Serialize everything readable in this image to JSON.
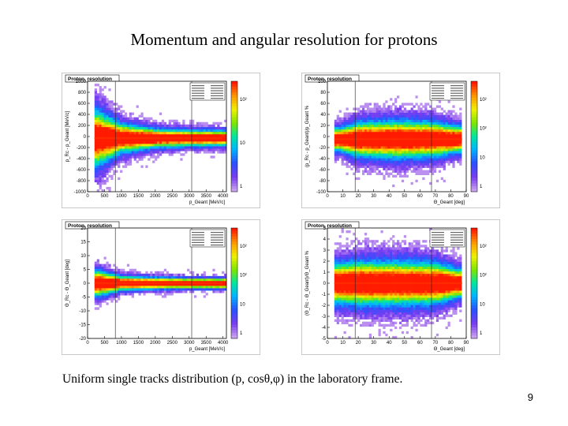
{
  "slide": {
    "title": "Momentum and angular resolution for protons",
    "caption": "Uniform single tracks distribution  (p, cosθ,φ) in the laboratory frame.",
    "page_number": "9"
  },
  "chart_data": [
    {
      "type": "heatmap",
      "title": "Proton, resolution",
      "xlabel": "p_Geant [MeV/c]",
      "ylabel": "p_Rc - p_Geant [MeV/c]",
      "xlim": [
        0,
        4100
      ],
      "ylim": [
        -1000,
        1000
      ],
      "xticks": [
        "0",
        "500",
        "1000",
        "1500",
        "2000",
        "2500",
        "3000",
        "3500",
        "4000"
      ],
      "yticks": [
        "1000",
        "800",
        "600",
        "400",
        "200",
        "0",
        "-200",
        "-400",
        "-600",
        "-800",
        "-1000"
      ],
      "colorbar_labels": [
        "10²",
        "10",
        "1"
      ],
      "core_y": -30,
      "spread": {
        "x": [
          300,
          1000,
          2000,
          3000,
          4000
        ],
        "halfwidth": [
          950,
          500,
          330,
          280,
          260
        ]
      }
    },
    {
      "type": "heatmap",
      "title": "Proton, resolution",
      "xlabel": "Θ_Geant [deg]",
      "ylabel": "(p_Rc - p_Geant)/p_Geant %",
      "xlim": [
        0,
        90
      ],
      "ylim": [
        -100,
        100
      ],
      "xticks": [
        "0",
        "10",
        "20",
        "30",
        "40",
        "50",
        "60",
        "70",
        "80",
        "90"
      ],
      "yticks": [
        "100",
        "80",
        "60",
        "40",
        "20",
        "0",
        "-20",
        "-40",
        "-60",
        "-80",
        "-100"
      ],
      "colorbar_labels": [
        "10²",
        "10²",
        "10",
        "1"
      ],
      "core_y": -5,
      "spread": {
        "x": [
          8,
          20,
          45,
          70,
          85
        ],
        "halfwidth": [
          40,
          60,
          65,
          60,
          45
        ]
      }
    },
    {
      "type": "heatmap",
      "title": "Proton, resolution",
      "xlabel": "p_Geant [MeV/c]",
      "ylabel": "Θ_Rc - Θ_Geant [deg]",
      "xlim": [
        0,
        4100
      ],
      "ylim": [
        -20,
        20
      ],
      "xticks": [
        "0",
        "500",
        "1000",
        "1500",
        "2000",
        "2500",
        "3000",
        "3500",
        "4000"
      ],
      "yticks": [
        "20",
        "15",
        "10",
        "5",
        "0",
        "-5",
        "-10",
        "-15",
        "-20"
      ],
      "colorbar_labels": [
        "10²",
        "10²",
        "10",
        "1"
      ],
      "core_y": 0,
      "spread": {
        "x": [
          300,
          1000,
          2000,
          3000,
          4000
        ],
        "halfwidth": [
          9,
          5,
          4,
          3.5,
          3.5
        ]
      }
    },
    {
      "type": "heatmap",
      "title": "Proton, resolution",
      "xlabel": "Θ_Geant [deg]",
      "ylabel": "(Θ_Rc - Θ_Geant)/Θ_Geant %",
      "xlim": [
        0,
        90
      ],
      "ylim": [
        -5,
        5
      ],
      "xticks": [
        "0",
        "10",
        "20",
        "30",
        "40",
        "50",
        "60",
        "70",
        "80",
        "90"
      ],
      "yticks": [
        "5",
        "4",
        "3",
        "2",
        "1",
        "0",
        "-1",
        "-2",
        "-3",
        "-4",
        "-5"
      ],
      "colorbar_labels": [
        "10²",
        "10²",
        "10",
        "1"
      ],
      "core_y": 0,
      "spread": {
        "x": [
          8,
          20,
          45,
          70,
          85
        ],
        "halfwidth": [
          3.5,
          3.8,
          3.8,
          3.6,
          2.5
        ]
      }
    }
  ]
}
